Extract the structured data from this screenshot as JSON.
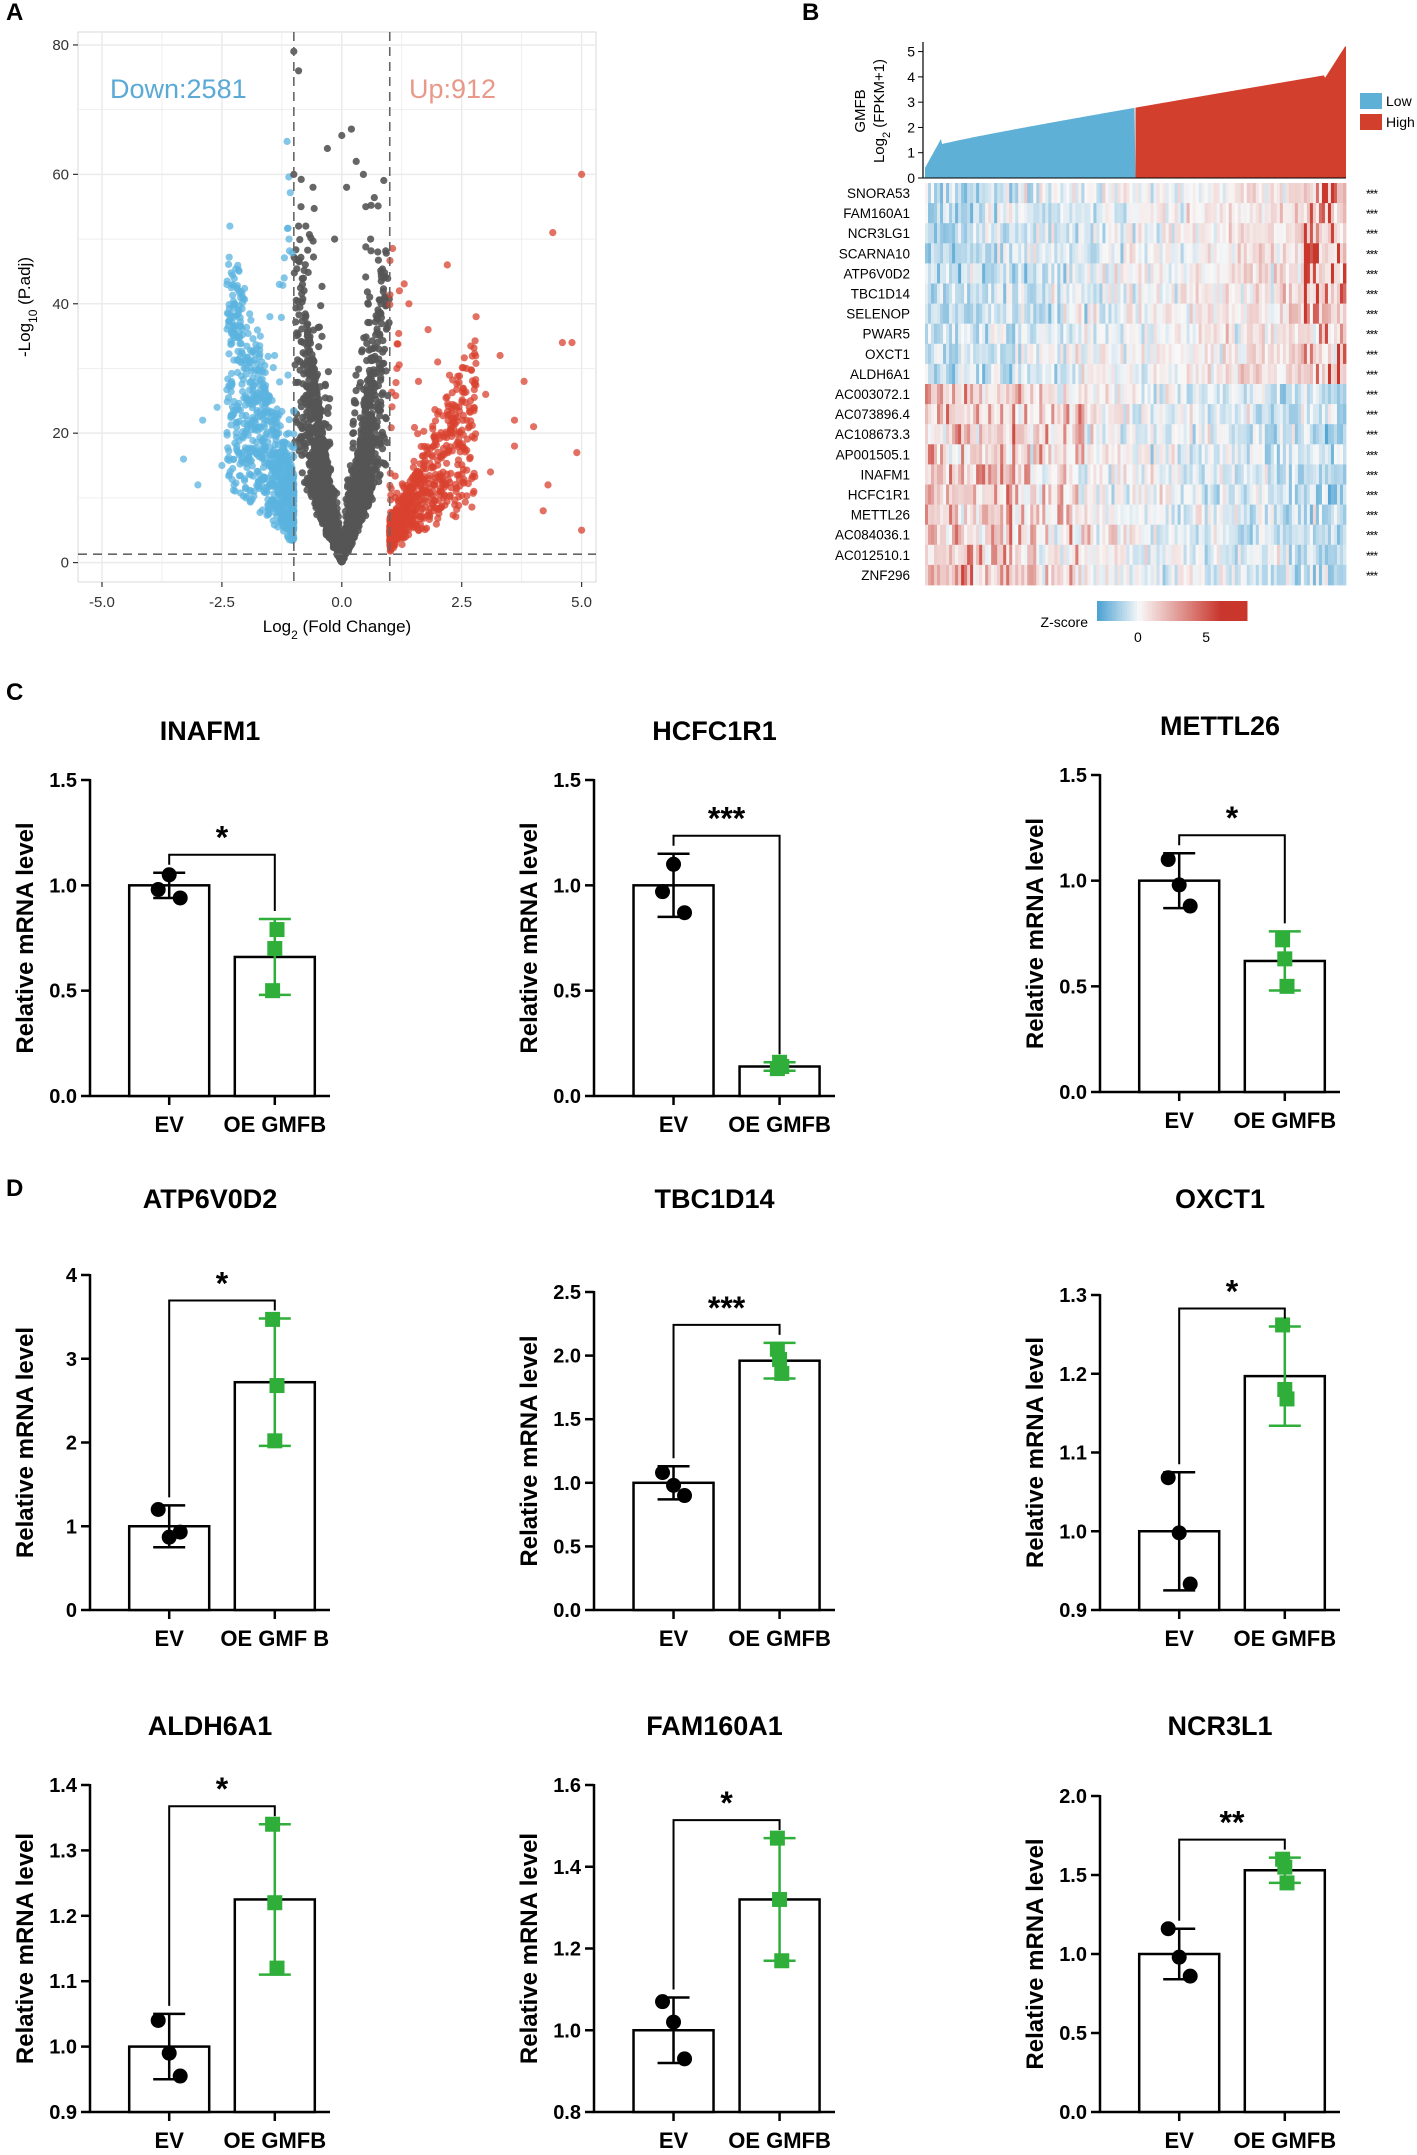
{
  "panels": {
    "A": "A",
    "B": "B",
    "C": "C",
    "D": "D"
  },
  "chart_data": [
    {
      "id": "volcano",
      "type": "scatter",
      "title": "",
      "xlabel_main": "Log",
      "xlabel_sub": "2",
      "xlabel_rest": " (Fold Change)",
      "ylabel_main": "-Log",
      "ylabel_sub": "10",
      "ylabel_rest": " (P.adj)",
      "xlim": [
        -5.5,
        5.3
      ],
      "ylim": [
        -3,
        82
      ],
      "xticks": [
        -5.0,
        -2.5,
        0.0,
        2.5,
        5.0
      ],
      "xtick_labels": [
        "-5.0",
        "-2.5",
        "0.0",
        "2.5",
        "5.0"
      ],
      "yticks": [
        0,
        20,
        40,
        60,
        80
      ],
      "fc_threshold": [
        -1,
        1
      ],
      "p_threshold": 1.3,
      "down_label": "Down:2581",
      "up_label": "Up:912",
      "down_count": 2581,
      "up_count": 912,
      "colors": {
        "down": "#5bb3df",
        "up": "#d9412f",
        "ns": "#555555",
        "grid": "#ebebeb"
      },
      "down_outliers": [
        [
          -1.0,
          79
        ],
        [
          -0.9,
          76
        ],
        [
          -1.0,
          60
        ],
        [
          -0.85,
          55
        ],
        [
          -0.9,
          52
        ],
        [
          -1.1,
          50
        ],
        [
          -1.2,
          44
        ],
        [
          -1.3,
          43
        ],
        [
          -1.5,
          38
        ],
        [
          -1.7,
          35
        ],
        [
          -2.0,
          30
        ],
        [
          -2.3,
          28
        ],
        [
          -2.6,
          24
        ],
        [
          -2.9,
          22
        ],
        [
          -3.3,
          16
        ],
        [
          -2.2,
          20
        ],
        [
          -1.8,
          25
        ],
        [
          -1.4,
          32
        ],
        [
          -1.6,
          27
        ],
        [
          -2.5,
          15
        ],
        [
          -3.0,
          12
        ],
        [
          -2.0,
          10
        ]
      ],
      "up_outliers": [
        [
          5.0,
          60
        ],
        [
          4.4,
          51
        ],
        [
          4.6,
          34
        ],
        [
          2.2,
          46
        ],
        [
          4.8,
          34
        ],
        [
          3.3,
          32
        ],
        [
          3.0,
          26
        ],
        [
          3.8,
          28
        ],
        [
          4.9,
          17
        ],
        [
          5.0,
          5
        ],
        [
          4.3,
          12
        ],
        [
          4.2,
          8
        ],
        [
          4.0,
          21
        ],
        [
          2.6,
          30
        ],
        [
          3.6,
          18
        ],
        [
          2.8,
          38
        ],
        [
          3.1,
          14
        ],
        [
          3.6,
          22
        ],
        [
          2.3,
          20
        ],
        [
          1.4,
          40
        ],
        [
          1.2,
          42
        ],
        [
          1.8,
          36
        ],
        [
          2.0,
          31
        ],
        [
          1.6,
          28
        ]
      ],
      "ns_peaks": [
        [
          0.0,
          66
        ],
        [
          0.2,
          67
        ],
        [
          0.3,
          62
        ],
        [
          -0.3,
          64
        ],
        [
          -0.6,
          58
        ],
        [
          0.5,
          55
        ],
        [
          -0.15,
          50
        ],
        [
          0.1,
          58
        ],
        [
          -0.75,
          52
        ],
        [
          0.75,
          48
        ],
        [
          0.6,
          50
        ],
        [
          0.45,
          60
        ]
      ]
    },
    {
      "id": "heatmap",
      "type": "heatmap",
      "bar_ylabel_gene": "GMFB",
      "bar_ylabel_main": "Log",
      "bar_ylabel_sub": "2",
      "bar_ylabel_rest": " (FPKM+1)",
      "bar_yticks": [
        0,
        1,
        2,
        3,
        4,
        5
      ],
      "bar_ylim": [
        0,
        5.3
      ],
      "legend": [
        {
          "label": "Low",
          "color": "#5fb0d6"
        },
        {
          "label": "High",
          "color": "#d2402d"
        }
      ],
      "rows": [
        "SNORA53",
        "FAM160A1",
        "NCR3LG1",
        "SCARNA10",
        "ATP6V0D2",
        "TBC1D14",
        "SELENOP",
        "PWAR5",
        "OXCT1",
        "ALDH6A1",
        "AC003072.1",
        "AC073896.4",
        "AC108673.3",
        "AP001505.1",
        "INAFM1",
        "HCFC1R1",
        "METTL26",
        "AC084036.1",
        "AC012510.1",
        "ZNF296"
      ],
      "row_trend": [
        1,
        1,
        1,
        1,
        1,
        1,
        1,
        1,
        1,
        1,
        -1,
        -1,
        -1,
        -1,
        -1,
        -1,
        -1,
        -1,
        -1,
        -1
      ],
      "significance": "***",
      "zscore_label": "Z-score",
      "zscore_ticks": [
        0,
        5
      ],
      "zscore_range": [
        -3,
        8
      ],
      "colors": {
        "low": "#4ea3d3",
        "mid": "#f8f8f8",
        "high": "#c8362c"
      }
    },
    {
      "id": "INAFM1",
      "panel": "C",
      "type": "bar",
      "title": "INAFM1",
      "ylabel": "Relative mRNA level",
      "categories": [
        "EV",
        "OE GMFB"
      ],
      "values": [
        1.0,
        0.66
      ],
      "errors": [
        0.06,
        0.18
      ],
      "points": [
        [
          0.98,
          1.05,
          0.94
        ],
        [
          0.5,
          0.7,
          0.79
        ]
      ],
      "ylim": [
        0,
        1.5
      ],
      "yticks": [
        0.0,
        0.5,
        1.0,
        1.5
      ],
      "ytick_labels": [
        "0.0",
        "0.5",
        "1.0",
        "1.5"
      ],
      "sig": "*",
      "colors": [
        "#000000",
        "#2fae3a"
      ]
    },
    {
      "id": "HCFC1R1",
      "panel": "C",
      "type": "bar",
      "title": "HCFC1R1",
      "ylabel": "Relative mRNA level",
      "categories": [
        "EV",
        "OE GMFB"
      ],
      "values": [
        1.0,
        0.14
      ],
      "errors": [
        0.15,
        0.02
      ],
      "points": [
        [
          0.97,
          1.1,
          0.87
        ],
        [
          0.13,
          0.16,
          0.14
        ]
      ],
      "ylim": [
        0,
        1.5
      ],
      "yticks": [
        0.0,
        0.5,
        1.0,
        1.5
      ],
      "ytick_labels": [
        "0.0",
        "0.5",
        "1.0",
        "1.5"
      ],
      "sig": "***",
      "colors": [
        "#000000",
        "#2fae3a"
      ]
    },
    {
      "id": "METTL26",
      "panel": "C",
      "type": "bar",
      "title": "METTL26",
      "ylabel": "Relative mRNA level",
      "categories": [
        "EV",
        "OE GMFB"
      ],
      "values": [
        1.0,
        0.62
      ],
      "errors": [
        0.13,
        0.14
      ],
      "points": [
        [
          1.1,
          0.98,
          0.88
        ],
        [
          0.72,
          0.63,
          0.5
        ]
      ],
      "ylim": [
        0,
        1.5
      ],
      "yticks": [
        0.0,
        0.5,
        1.0,
        1.5
      ],
      "ytick_labels": [
        "0.0",
        "0.5",
        "1.0",
        "1.5"
      ],
      "sig": "*",
      "colors": [
        "#000000",
        "#2fae3a"
      ]
    },
    {
      "id": "ATP6V0D2",
      "panel": "D",
      "type": "bar",
      "title": "ATP6V0D2",
      "ylabel": "Relative mRNA level",
      "categories": [
        "EV",
        "OE GMF B"
      ],
      "values": [
        1.0,
        2.72
      ],
      "errors": [
        0.25,
        0.76
      ],
      "points": [
        [
          1.2,
          0.87,
          0.93
        ],
        [
          3.47,
          2.02,
          2.68
        ]
      ],
      "ylim": [
        0,
        4
      ],
      "yticks": [
        0,
        1,
        2,
        3,
        4
      ],
      "ytick_labels": [
        "0",
        "1",
        "2",
        "3",
        "4"
      ],
      "sig": "*",
      "colors": [
        "#000000",
        "#2fae3a"
      ]
    },
    {
      "id": "TBC1D14",
      "panel": "D",
      "type": "bar",
      "title": "TBC1D14",
      "ylabel": "Relative mRNA level",
      "categories": [
        "EV",
        "OE GMFB"
      ],
      "values": [
        1.0,
        1.96
      ],
      "errors": [
        0.13,
        0.14
      ],
      "points": [
        [
          1.08,
          0.98,
          0.9
        ],
        [
          2.05,
          1.97,
          1.86
        ]
      ],
      "ylim": [
        0,
        2.5
      ],
      "yticks": [
        0.0,
        0.5,
        1.0,
        1.5,
        2.0,
        2.5
      ],
      "ytick_labels": [
        "0.0",
        "0.5",
        "1.0",
        "1.5",
        "2.0",
        "2.5"
      ],
      "sig": "***",
      "colors": [
        "#000000",
        "#2fae3a"
      ]
    },
    {
      "id": "OXCT1",
      "panel": "D",
      "type": "bar",
      "title": "OXCT1",
      "ylabel": "Relative mRNA level",
      "categories": [
        "EV",
        "OE GMFB"
      ],
      "values": [
        1.0,
        1.197
      ],
      "errors": [
        0.075,
        0.063
      ],
      "points": [
        [
          1.068,
          0.998,
          0.933
        ],
        [
          1.262,
          1.18,
          1.168
        ]
      ],
      "ylim": [
        0.9,
        1.3
      ],
      "yticks": [
        0.9,
        1.0,
        1.1,
        1.2,
        1.3
      ],
      "ytick_labels": [
        "0.9",
        "1.0",
        "1.1",
        "1.2",
        "1.3"
      ],
      "sig": "*",
      "colors": [
        "#000000",
        "#2fae3a"
      ]
    },
    {
      "id": "ALDH6A1",
      "panel": "D",
      "type": "bar",
      "title": "ALDH6A1",
      "ylabel": "Relative mRNA level",
      "categories": [
        "EV",
        "OE GMFB"
      ],
      "values": [
        1.0,
        1.225
      ],
      "errors": [
        0.05,
        0.115
      ],
      "points": [
        [
          1.04,
          0.99,
          0.955
        ],
        [
          1.34,
          1.22,
          1.12
        ]
      ],
      "ylim": [
        0.9,
        1.4
      ],
      "yticks": [
        0.9,
        1.0,
        1.1,
        1.2,
        1.3,
        1.4
      ],
      "ytick_labels": [
        "0.9",
        "1.0",
        "1.1",
        "1.2",
        "1.3",
        "1.4"
      ],
      "sig": "*",
      "colors": [
        "#000000",
        "#2fae3a"
      ]
    },
    {
      "id": "FAM160A1",
      "panel": "D",
      "type": "bar",
      "title": "FAM160A1",
      "ylabel": "Relative mRNA level",
      "categories": [
        "EV",
        "OE GMFB"
      ],
      "values": [
        1.0,
        1.32
      ],
      "errors": [
        0.08,
        0.15
      ],
      "points": [
        [
          1.07,
          1.02,
          0.93
        ],
        [
          1.47,
          1.32,
          1.17
        ]
      ],
      "ylim": [
        0.8,
        1.6
      ],
      "yticks": [
        0.8,
        1.0,
        1.2,
        1.4,
        1.6
      ],
      "ytick_labels": [
        "0.8",
        "1.0",
        "1.2",
        "1.4",
        "1.6"
      ],
      "sig": "*",
      "colors": [
        "#000000",
        "#2fae3a"
      ]
    },
    {
      "id": "NCR3L1",
      "panel": "D",
      "type": "bar",
      "title": "NCR3L1",
      "ylabel": "Relative mRNA level",
      "categories": [
        "EV",
        "OE GMFB"
      ],
      "values": [
        1.0,
        1.53
      ],
      "errors": [
        0.16,
        0.08
      ],
      "points": [
        [
          1.16,
          0.98,
          0.86
        ],
        [
          1.6,
          1.55,
          1.45
        ]
      ],
      "ylim": [
        0,
        2.0
      ],
      "yticks": [
        0.0,
        0.5,
        1.0,
        1.5,
        2.0
      ],
      "ytick_labels": [
        "0.0",
        "0.5",
        "1.0",
        "1.5",
        "2.0"
      ],
      "sig": "**",
      "colors": [
        "#000000",
        "#2fae3a"
      ]
    }
  ]
}
